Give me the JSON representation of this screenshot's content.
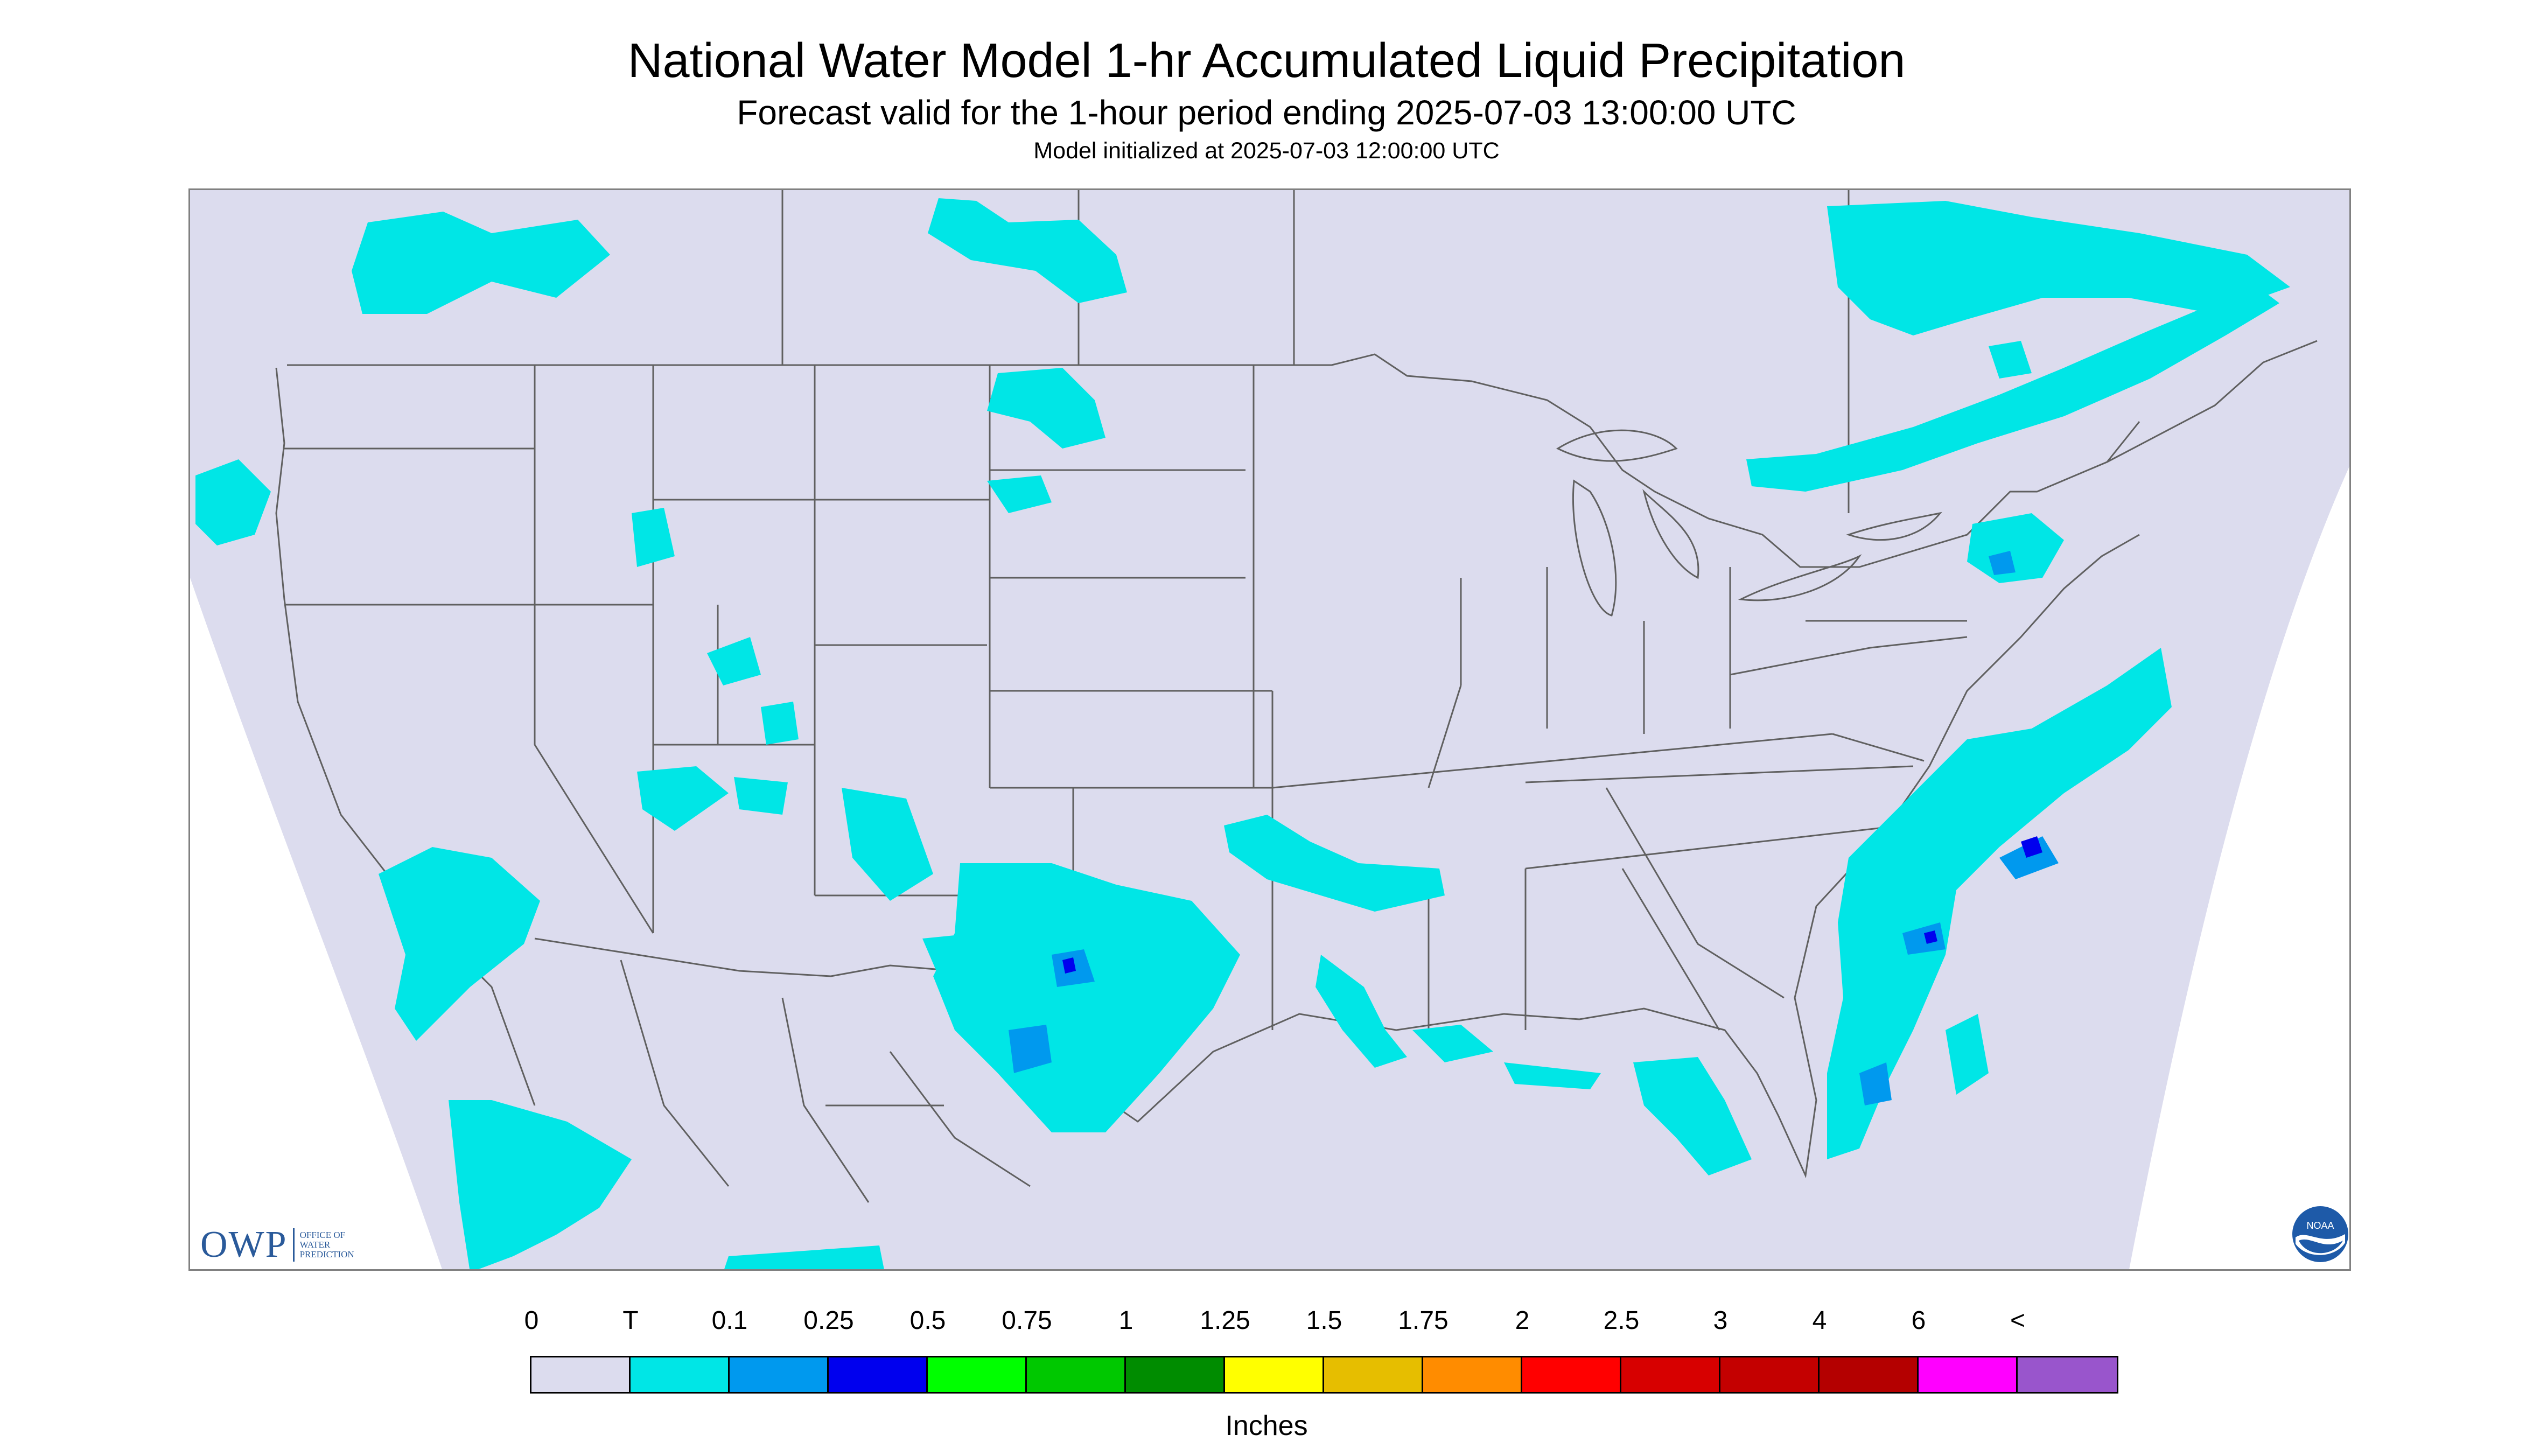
{
  "title": "National Water Model 1-hr Accumulated Liquid Precipitation",
  "subtitle": "Forecast valid for the 1-hour period ending 2025-07-03 13:00:00 UTC",
  "init_line": "Model initialized at 2025-07-03 12:00:00 UTC",
  "logos": {
    "owp_mark": "OWP",
    "owp_words": [
      "OFFICE OF",
      "WATER",
      "PREDICTION"
    ],
    "noaa_text": "NOAA"
  },
  "colors": {
    "background": "#ffffff",
    "land_zero": "#dcdcee",
    "boundary": "#606060",
    "trace": "#00eeee",
    "light": "#0099ee",
    "heavy_blue": "#0000ee"
  },
  "legend": {
    "labels": [
      "0",
      "T",
      "0.1",
      "0.25",
      "0.5",
      "0.75",
      "1",
      "1.25",
      "1.5",
      "1.75",
      "2",
      "2.5",
      "3",
      "4",
      "6",
      "<"
    ],
    "colors": [
      "#dcdcee",
      "#00e6e6",
      "#0099ee",
      "#0000ee",
      "#00ff00",
      "#00c800",
      "#008c00",
      "#ffff00",
      "#e6be00",
      "#ff8c00",
      "#ff0000",
      "#d70000",
      "#c40000",
      "#b40000",
      "#ff00ff",
      "#9955cc"
    ],
    "units": "Inches"
  }
}
